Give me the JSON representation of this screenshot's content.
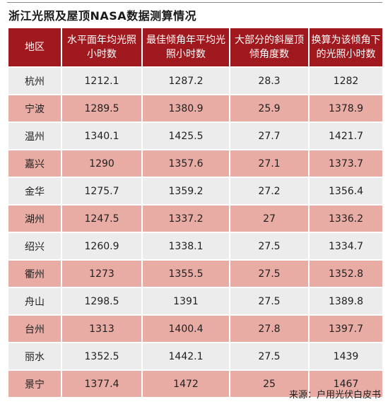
{
  "title": "浙江光照及屋顶NASA数据测算情况",
  "headers": [
    "地区",
    "水平面年均光照小时数",
    "最佳倾角年平均光照小时数",
    "大部分的斜屋顶倾角度数",
    "换算为该倾角下的光照小时数"
  ],
  "rows": [
    [
      "杭州",
      "1212.1",
      "1287.2",
      "28.3",
      "1282"
    ],
    [
      "宁波",
      "1289.5",
      "1380.9",
      "25.9",
      "1378.9"
    ],
    [
      "温州",
      "1340.1",
      "1425.5",
      "27.7",
      "1421.7"
    ],
    [
      "嘉兴",
      "1290",
      "1357.6",
      "27.1",
      "1373.7"
    ],
    [
      "金华",
      "1275.7",
      "1359.2",
      "27.2",
      "1356.4"
    ],
    [
      "湖州",
      "1247.5",
      "1337.2",
      "27",
      "1336.2"
    ],
    [
      "绍兴",
      "1260.9",
      "1338.1",
      "27.5",
      "1334.7"
    ],
    [
      "衢州",
      "1273",
      "1355.5",
      "27.5",
      "1352.8"
    ],
    [
      "舟山",
      "1298.5",
      "1391",
      "27.5",
      "1389.8"
    ],
    [
      "台州",
      "1313",
      "1400.4",
      "27.8",
      "1397.7"
    ],
    [
      "丽水",
      "1352.5",
      "1442.1",
      "27.5",
      "1439"
    ],
    [
      "景宁",
      "1377.4",
      "1472",
      "25",
      "1467"
    ]
  ],
  "source": "来源：户用光伏白皮书",
  "colors": {
    "header": "#a0191e",
    "row_light": "#ececec",
    "row_pink": "#e8aca5"
  }
}
